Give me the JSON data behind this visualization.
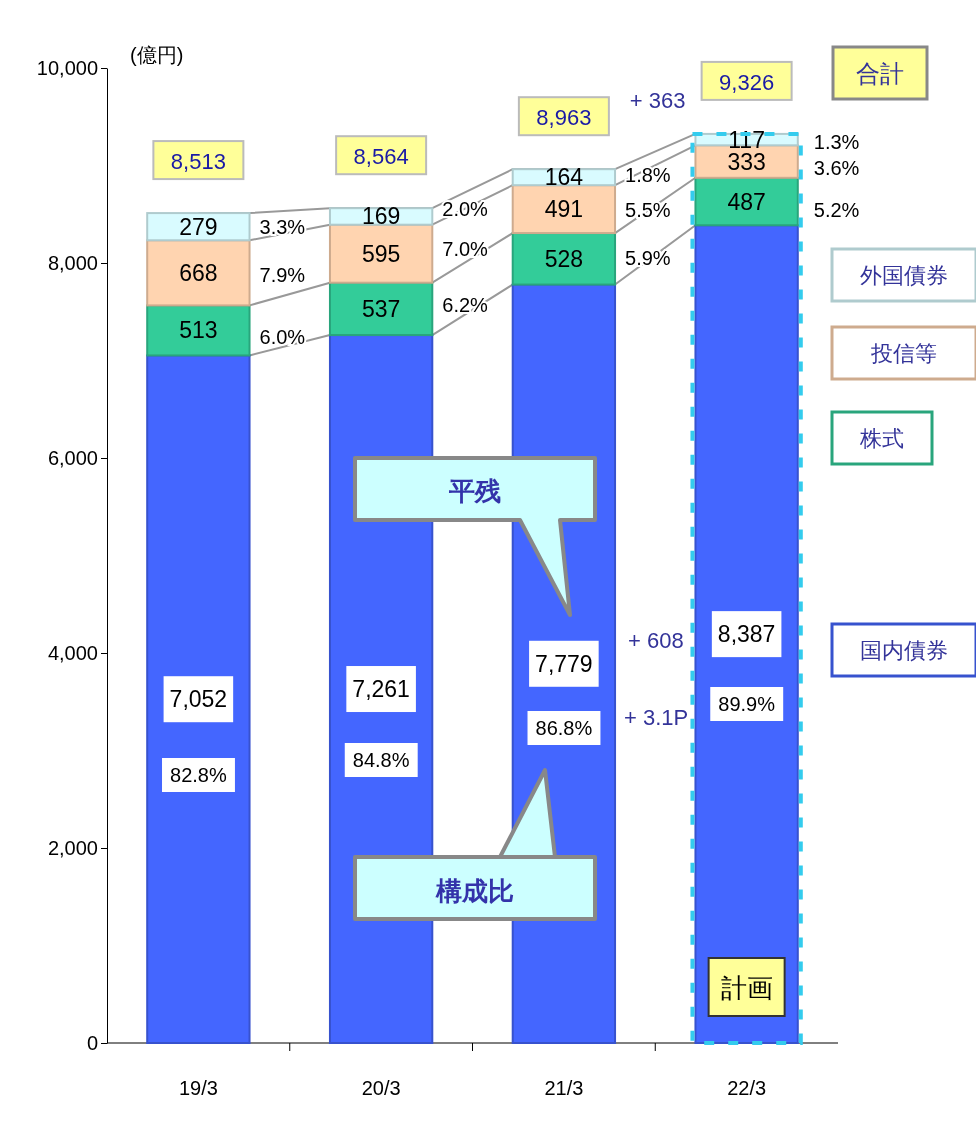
{
  "chart_data": {
    "type": "bar",
    "stacked": true,
    "ylabel": "(億円)",
    "categories": [
      "19/3",
      "20/3",
      "21/3",
      "22/3"
    ],
    "series": [
      {
        "name": "国内債券",
        "color": "#4466ff",
        "values": [
          7052,
          7261,
          7779,
          8387
        ],
        "value_labels": [
          "7,052",
          "7,261",
          "7,779",
          "8,387"
        ]
      },
      {
        "name": "株式",
        "color": "#33cc99",
        "values": [
          513,
          537,
          528,
          487
        ],
        "value_labels": [
          "513",
          "537",
          "528",
          "487"
        ]
      },
      {
        "name": "投信等",
        "color": "#ffd4b0",
        "values": [
          668,
          595,
          491,
          333
        ],
        "value_labels": [
          "668",
          "595",
          "491",
          "333"
        ]
      },
      {
        "name": "外国債券",
        "color": "#d9fbff",
        "values": [
          279,
          169,
          164,
          117
        ],
        "value_labels": [
          "279",
          "169",
          "164",
          "117"
        ]
      }
    ],
    "totals": [
      "8,513",
      "8,564",
      "8,963",
      "9,326"
    ],
    "ylim": [
      0,
      10000
    ],
    "yticks": [
      0,
      {
        "value": 2000,
        "label": "2,000"
      },
      {
        "value": 4000,
        "label": "4,000"
      },
      {
        "value": 6000,
        "label": "6,000"
      },
      {
        "value": 8000,
        "label": "8,000"
      },
      {
        "value": 10000,
        "label": "10,000"
      }
    ],
    "legend": "right",
    "grid": false,
    "annotations": [
      "82.8%",
      "84.8%",
      "86.8%",
      "89.9%",
      "6.0%",
      "7.9%",
      "3.3%",
      "6.2%",
      "7.0%",
      "2.0%",
      "5.9%",
      "5.5%",
      "1.8%",
      "5.2%",
      "3.6%",
      "1.3%",
      {
        "text": "+ 363",
        "x": "22/3",
        "y": 9326
      },
      "+ 608",
      "+ 3.1P",
      "平残",
      "構成比",
      "合計",
      "計画"
    ]
  }
}
